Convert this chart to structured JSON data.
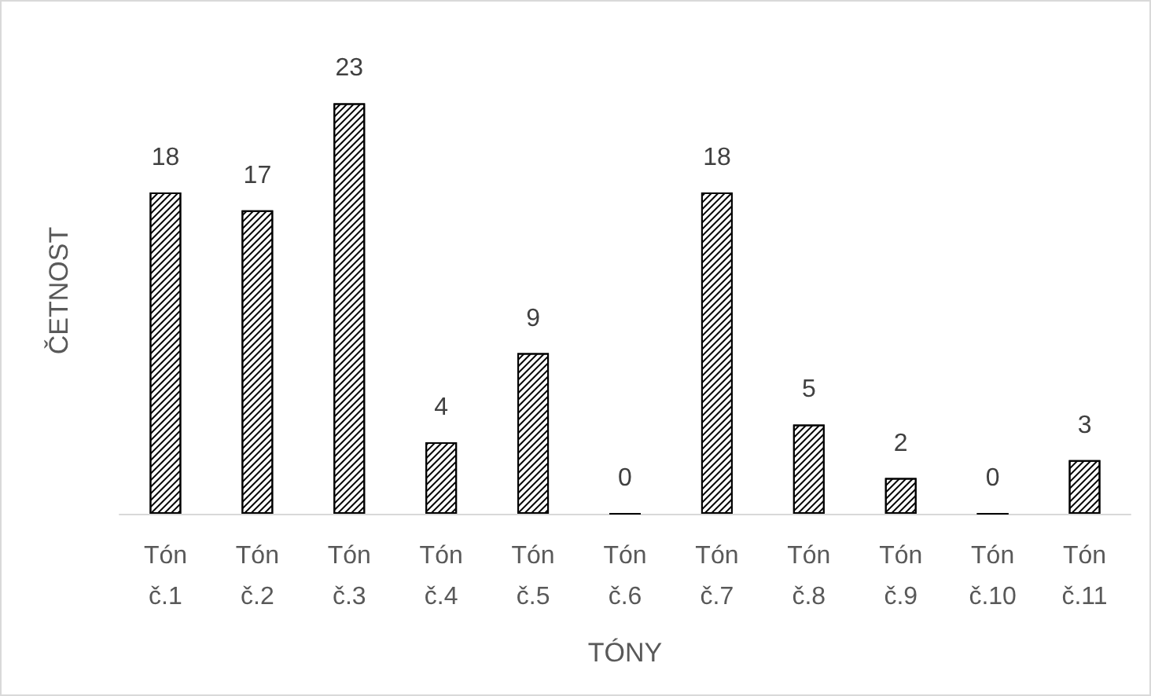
{
  "chart_data": {
    "type": "bar",
    "xlabel": "TÓNY",
    "ylabel": "ČETNOST",
    "categories": [
      "Tón č.1",
      "Tón č.2",
      "Tón č.3",
      "Tón č.4",
      "Tón č.5",
      "Tón č.6",
      "Tón č.7",
      "Tón č.8",
      "Tón č.9",
      "Tón č.10",
      "Tón č.11"
    ],
    "values": [
      18,
      17,
      23,
      4,
      9,
      0,
      18,
      5,
      2,
      0,
      3
    ],
    "color": "#000000",
    "data_labels": true
  }
}
